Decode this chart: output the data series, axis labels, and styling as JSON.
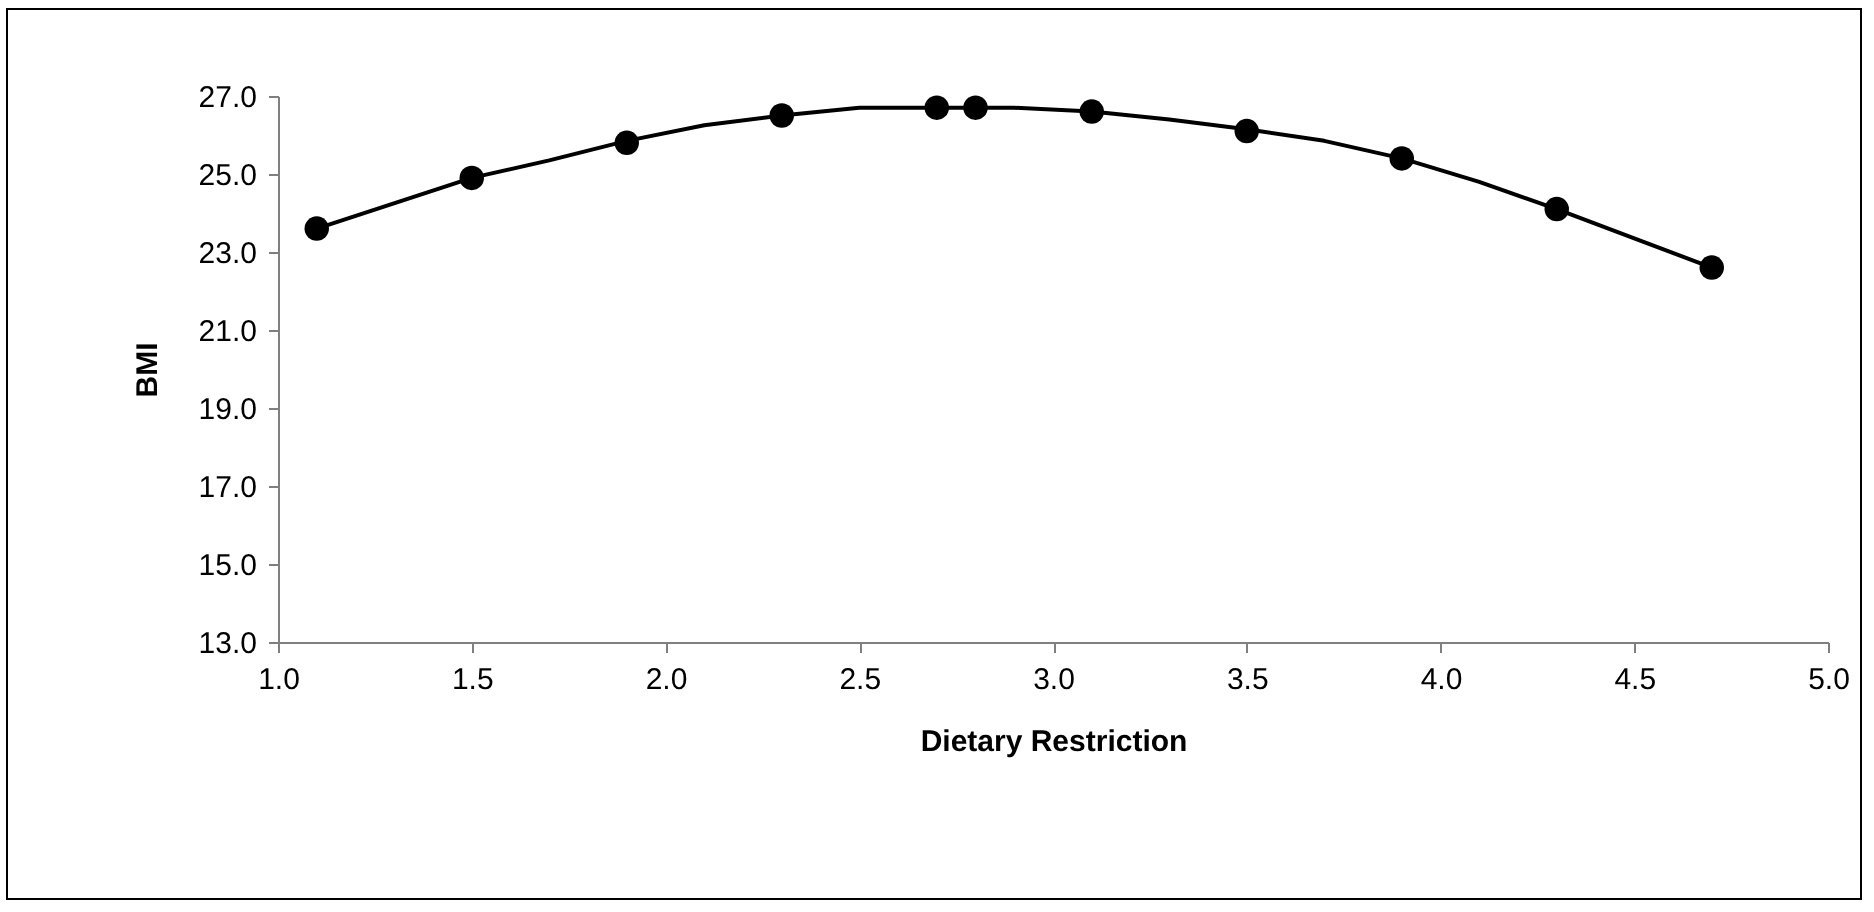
{
  "chart_data": {
    "type": "scatter",
    "xlabel": "Dietary Restriction",
    "ylabel": "BMI",
    "xlim": [
      1.0,
      5.0
    ],
    "xticks": [
      {
        "value": 1,
        "label": "1.0"
      },
      {
        "value": 1.5,
        "label": "1.5"
      },
      {
        "value": 2,
        "label": "2.0"
      },
      {
        "value": 2.5,
        "label": "2.5"
      },
      {
        "value": 3,
        "label": "3.0"
      },
      {
        "value": 3.5,
        "label": "3.5"
      },
      {
        "value": 4,
        "label": "4.0"
      },
      {
        "value": 4.5,
        "label": "4.5"
      },
      {
        "value": 5,
        "label": "5.0"
      }
    ],
    "ylim": [
      13.0,
      27.0
    ],
    "yticks": [
      {
        "value": 13,
        "label": "13.0"
      },
      {
        "value": 15,
        "label": "15.0"
      },
      {
        "value": 17,
        "label": "17.0"
      },
      {
        "value": 19,
        "label": "19.0"
      },
      {
        "value": 21,
        "label": "21.0"
      },
      {
        "value": 23,
        "label": "23.0"
      },
      {
        "value": 25,
        "label": "25.0"
      },
      {
        "value": 27,
        "label": "27.0"
      }
    ],
    "grid": false,
    "series": [
      {
        "type": "scatter",
        "marker": "circle",
        "color": "#000000",
        "x": [
          1.1,
          1.5,
          1.9,
          2.3,
          2.7,
          2.8,
          3.1,
          3.5,
          3.9,
          4.3,
          4.7
        ],
        "values": [
          23.6,
          24.9,
          25.8,
          26.5,
          26.7,
          26.7,
          26.6,
          26.1,
          25.4,
          24.1,
          22.6
        ]
      },
      {
        "type": "line",
        "marker": "none",
        "color": "#000000",
        "line_style": "solid",
        "x": [
          1.1,
          1.5,
          1.7,
          1.9,
          2.1,
          2.3,
          2.5,
          2.7,
          2.9,
          3.1,
          3.3,
          3.5,
          3.7,
          3.9,
          4.1,
          4.3,
          4.5,
          4.7
        ],
        "values": [
          23.6,
          24.9,
          25.35,
          25.85,
          26.25,
          26.5,
          26.7,
          26.7,
          26.7,
          26.6,
          26.4,
          26.15,
          25.85,
          25.4,
          24.8,
          24.1,
          23.35,
          22.6
        ]
      }
    ]
  }
}
